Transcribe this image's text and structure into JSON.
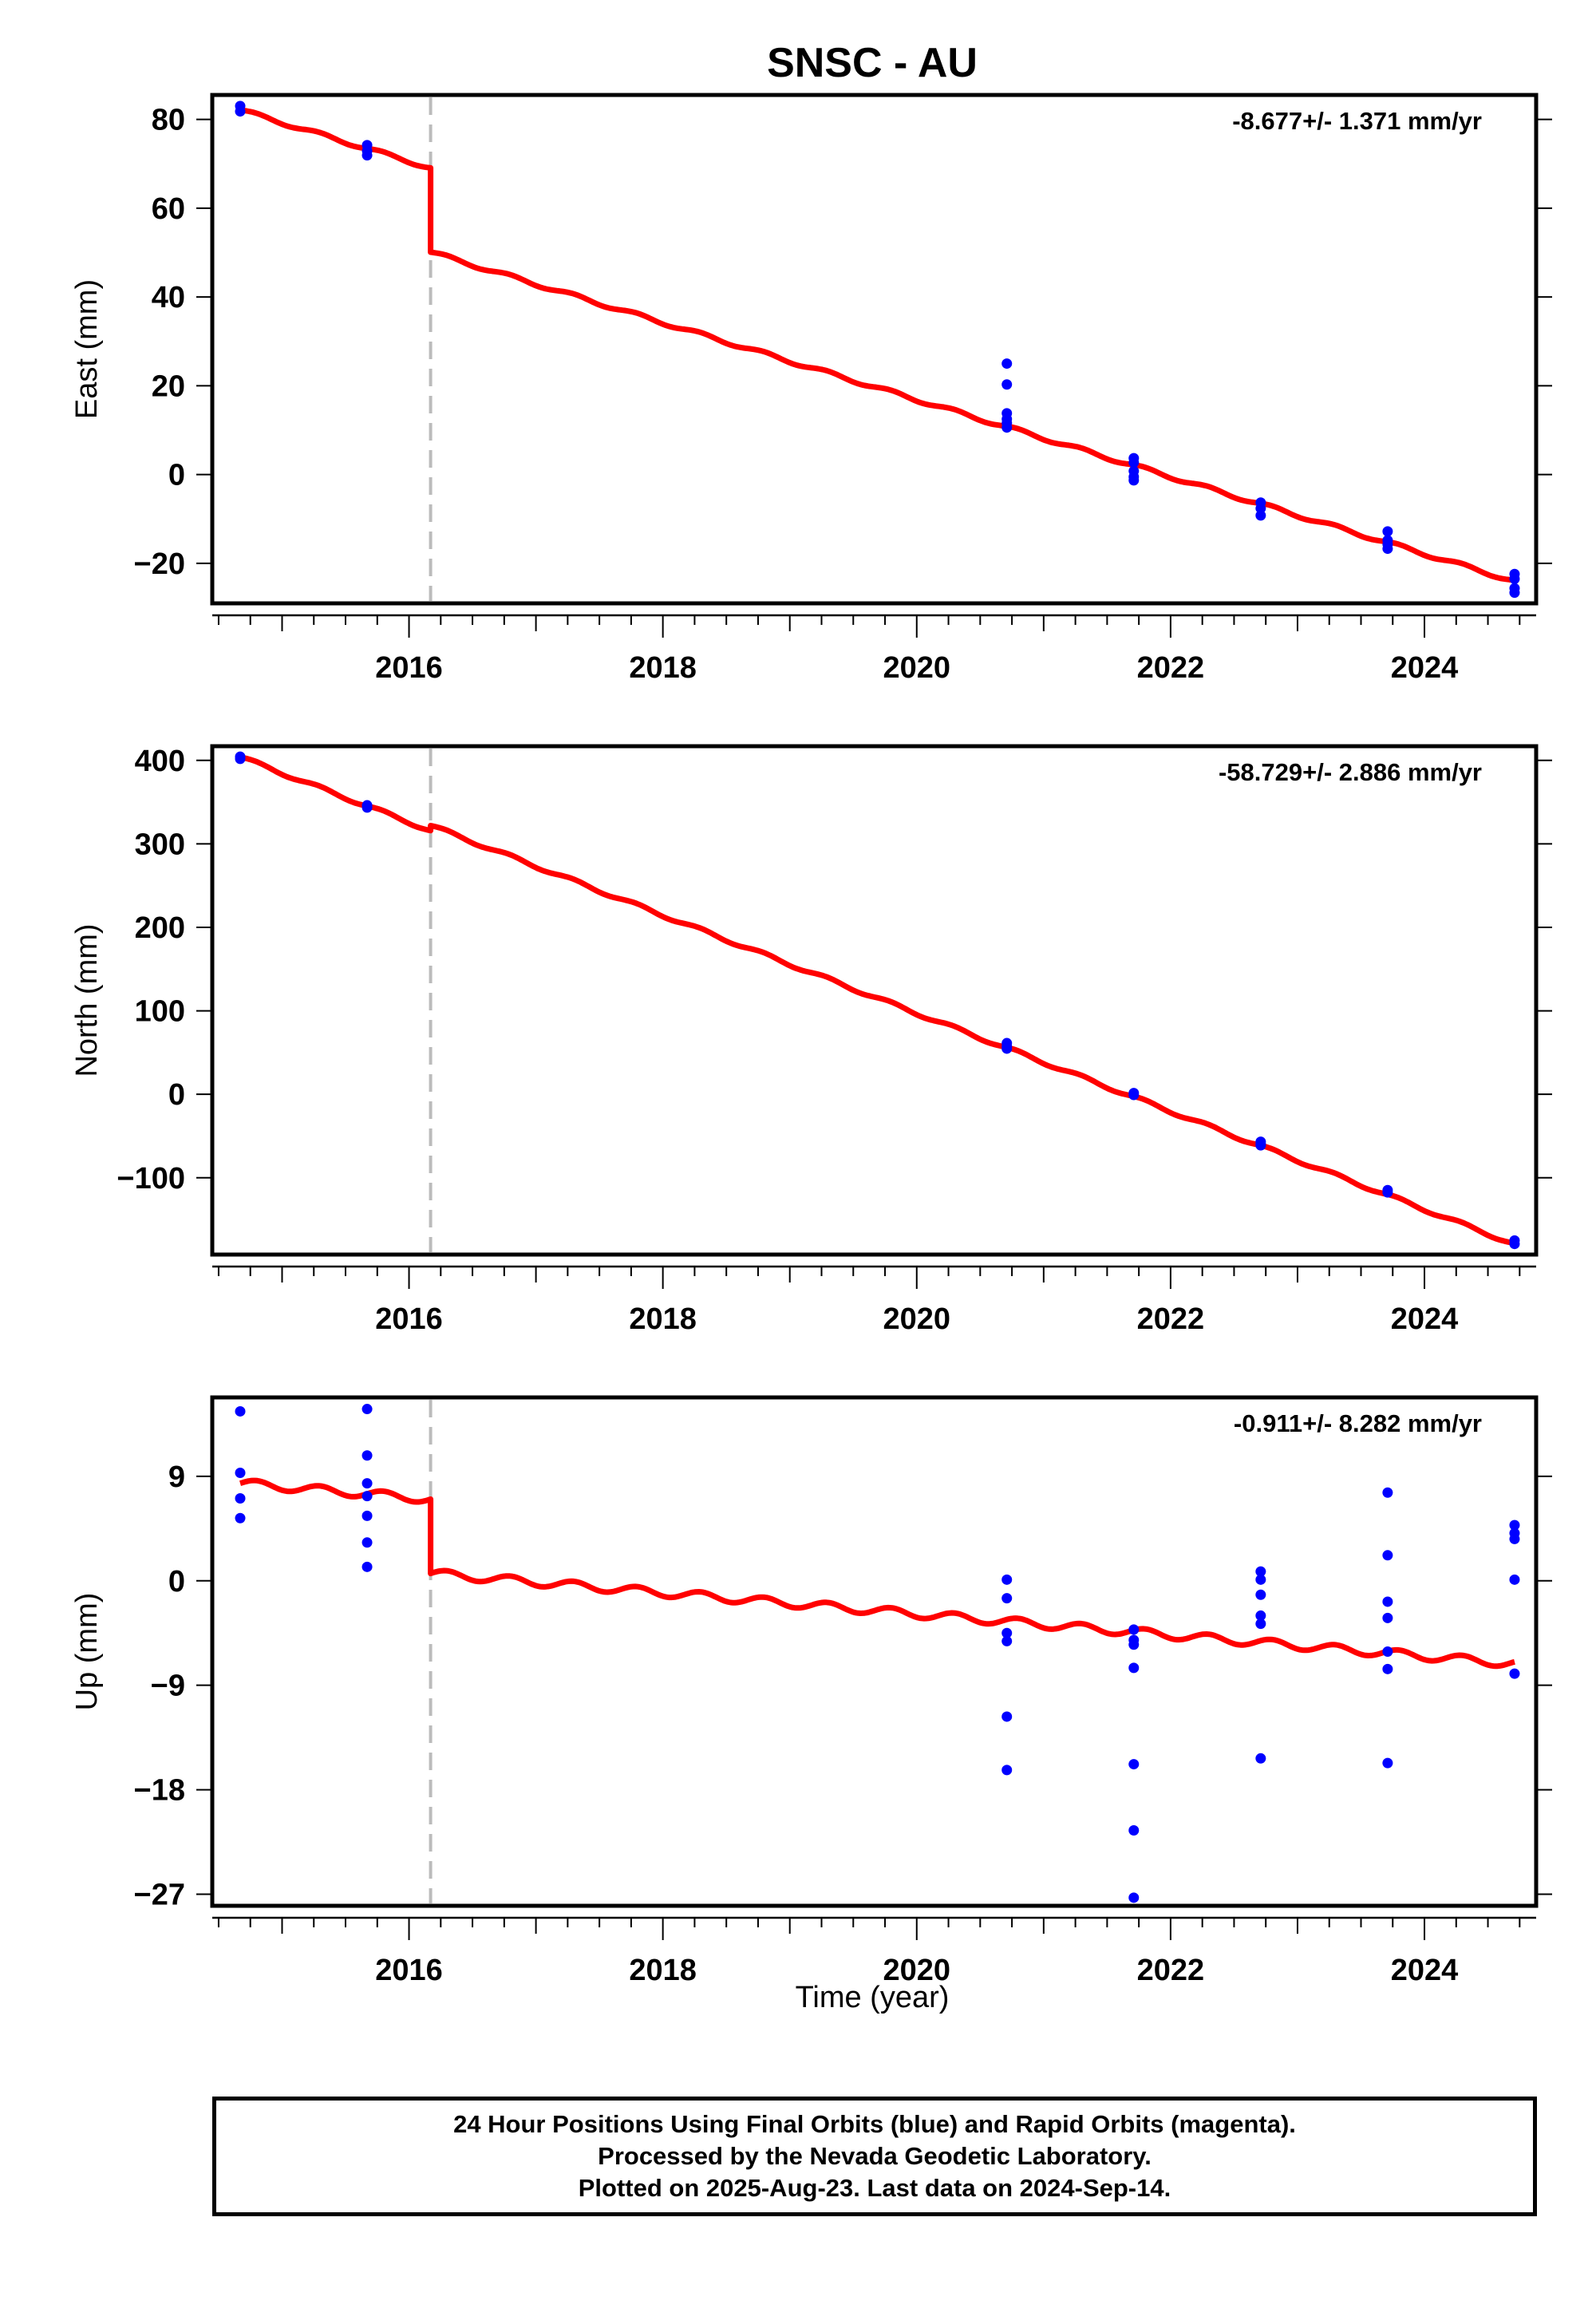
{
  "chart_data": {
    "type": "scatter",
    "title": "SNSC - AU",
    "xlabel": "Time (year)",
    "xlim": [
      2014.45,
      2024.88
    ],
    "x_ticks": [
      2016,
      2018,
      2020,
      2022,
      2024
    ],
    "step_epoch": 2016.17,
    "colors": {
      "observations": "#0000ff",
      "model": "#ff0000",
      "step_marker": "#bbbbbb"
    },
    "panels": [
      {
        "ylabel": "East (mm)",
        "rate_label": "-8.677+/- 1.371 mm/yr",
        "ylim": [
          -29,
          85.5
        ],
        "y_ticks": [
          -20,
          0,
          20,
          40,
          60,
          80
        ],
        "y_tick_labels": [
          "−20",
          "0",
          "20",
          "40",
          "60",
          "80"
        ],
        "observations": [
          [
            2014.67,
            83.0
          ],
          [
            2014.67,
            81.8
          ],
          [
            2015.67,
            74.2
          ],
          [
            2015.67,
            72.9
          ],
          [
            2015.67,
            71.9
          ],
          [
            2020.71,
            25.0
          ],
          [
            2020.71,
            20.3
          ],
          [
            2020.71,
            13.8
          ],
          [
            2020.71,
            12.5
          ],
          [
            2020.71,
            11.6
          ],
          [
            2020.71,
            10.6
          ],
          [
            2021.71,
            3.7
          ],
          [
            2021.71,
            2.7
          ],
          [
            2021.71,
            0.8
          ],
          [
            2021.71,
            -0.5
          ],
          [
            2021.71,
            -1.3
          ],
          [
            2022.71,
            -6.3
          ],
          [
            2022.71,
            -7.6
          ],
          [
            2022.71,
            -9.2
          ],
          [
            2023.71,
            -12.8
          ],
          [
            2023.71,
            -14.8
          ],
          [
            2023.71,
            -15.7
          ],
          [
            2023.71,
            -16.7
          ],
          [
            2024.71,
            -22.4
          ],
          [
            2024.71,
            -23.5
          ],
          [
            2024.71,
            -25.6
          ],
          [
            2024.71,
            -26.6
          ]
        ],
        "model": {
          "intercept": 82.1,
          "rate": -8.677,
          "step": -19.0,
          "seasonal": 0.4
        }
      },
      {
        "ylabel": "North (mm)",
        "rate_label": "-58.729+/- 2.886 mm/yr",
        "ylim": [
          -192,
          417
        ],
        "y_ticks": [
          -100,
          0,
          100,
          200,
          300,
          400
        ],
        "y_tick_labels": [
          "−100",
          "0",
          "100",
          "200",
          "300",
          "400"
        ],
        "observations": [
          [
            2014.67,
            404.5
          ],
          [
            2014.67,
            401.8
          ],
          [
            2015.67,
            346.2
          ],
          [
            2015.67,
            343.5
          ],
          [
            2020.71,
            61.3
          ],
          [
            2020.71,
            57.2
          ],
          [
            2020.71,
            54.7
          ],
          [
            2021.71,
            1.5
          ],
          [
            2021.71,
            -0.8
          ],
          [
            2022.71,
            -56.8
          ],
          [
            2022.71,
            -59.4
          ],
          [
            2022.71,
            -61.2
          ],
          [
            2023.71,
            -114.8
          ],
          [
            2023.71,
            -117.6
          ],
          [
            2024.71,
            -175.1
          ],
          [
            2024.71,
            -179.3
          ]
        ],
        "model": {
          "intercept": 404.0,
          "rate": -58.729,
          "step": 6.0,
          "seasonal": 2.0
        }
      },
      {
        "ylabel": "Up (mm)",
        "rate_label": "-0.911+/- 8.282 mm/yr",
        "ylim": [
          -28,
          15.8
        ],
        "y_ticks": [
          -27,
          -18,
          -9,
          0,
          9
        ],
        "y_tick_labels": [
          "−27",
          "−18",
          "−9",
          "0",
          "9"
        ],
        "observations": [
          [
            2014.67,
            14.6
          ],
          [
            2014.67,
            9.3
          ],
          [
            2014.67,
            7.1
          ],
          [
            2014.67,
            5.4
          ],
          [
            2015.67,
            14.8
          ],
          [
            2015.67,
            10.8
          ],
          [
            2015.67,
            8.4
          ],
          [
            2015.67,
            7.3
          ],
          [
            2015.67,
            5.6
          ],
          [
            2015.67,
            3.3
          ],
          [
            2015.67,
            1.2
          ],
          [
            2020.71,
            0.1
          ],
          [
            2020.71,
            -1.5
          ],
          [
            2020.71,
            -4.5
          ],
          [
            2020.71,
            -5.2
          ],
          [
            2020.71,
            -11.7
          ],
          [
            2020.71,
            -16.3
          ],
          [
            2021.71,
            -4.2
          ],
          [
            2021.71,
            -5.1
          ],
          [
            2021.71,
            -5.5
          ],
          [
            2021.71,
            -7.5
          ],
          [
            2021.71,
            -15.8
          ],
          [
            2021.71,
            -21.5
          ],
          [
            2021.71,
            -27.3
          ],
          [
            2022.71,
            0.8
          ],
          [
            2022.71,
            0.1
          ],
          [
            2022.71,
            -1.2
          ],
          [
            2022.71,
            -3.0
          ],
          [
            2022.71,
            -3.7
          ],
          [
            2022.71,
            -15.3
          ],
          [
            2023.71,
            7.6
          ],
          [
            2023.71,
            2.2
          ],
          [
            2023.71,
            -1.8
          ],
          [
            2023.71,
            -3.2
          ],
          [
            2023.71,
            -6.1
          ],
          [
            2023.71,
            -7.6
          ],
          [
            2023.71,
            -15.7
          ],
          [
            2024.71,
            4.8
          ],
          [
            2024.71,
            4.1
          ],
          [
            2024.71,
            3.6
          ],
          [
            2024.71,
            0.1
          ],
          [
            2024.71,
            -8.0
          ]
        ],
        "model": {
          "intercept": 8.4,
          "rate": -0.911,
          "step": -6.4,
          "seasonal": 0.35
        }
      }
    ]
  },
  "footer": {
    "line1": "24 Hour Positions Using Final Orbits (blue) and Rapid Orbits (magenta).",
    "line2": "Processed by the Nevada Geodetic Laboratory.",
    "line3": "Plotted on 2025-Aug-23. Last data on 2024-Sep-14."
  }
}
